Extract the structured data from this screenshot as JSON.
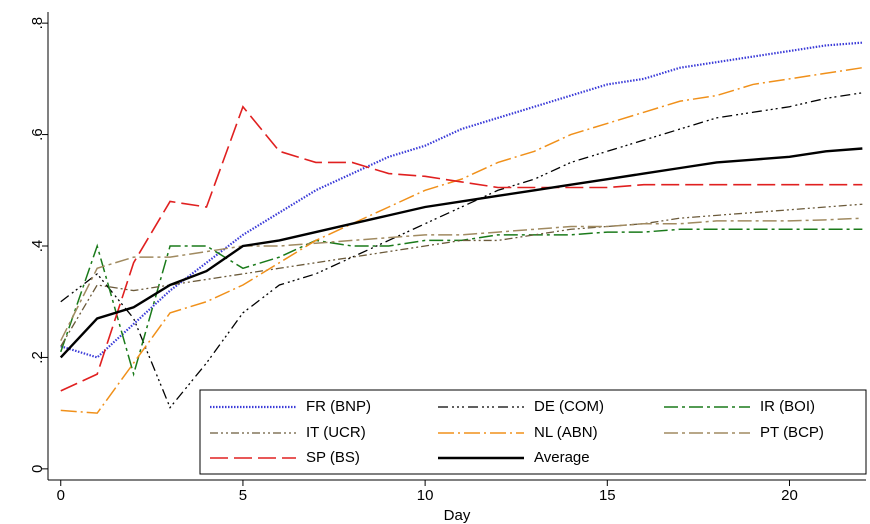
{
  "chart_data": {
    "type": "line",
    "xlabel": "Day",
    "x": [
      0,
      1,
      2,
      3,
      4,
      5,
      6,
      7,
      8,
      9,
      10,
      11,
      12,
      13,
      14,
      15,
      16,
      17,
      18,
      19,
      20,
      21,
      22
    ],
    "series": [
      {
        "name": "FR (BNP)",
        "color": "#3b3bd8",
        "dash": "1.5,1.5",
        "width": 2.2,
        "values": [
          0.22,
          0.2,
          0.26,
          0.32,
          0.37,
          0.42,
          0.46,
          0.5,
          0.53,
          0.56,
          0.58,
          0.61,
          0.63,
          0.65,
          0.67,
          0.69,
          0.7,
          0.72,
          0.73,
          0.74,
          0.75,
          0.76,
          0.765
        ]
      },
      {
        "name": "DE (COM)",
        "color": "#000000",
        "dash": "10,4,2,3,2,3,2,4",
        "width": 1.3,
        "values": [
          0.3,
          0.35,
          0.27,
          0.11,
          0.19,
          0.28,
          0.33,
          0.35,
          0.38,
          0.41,
          0.44,
          0.47,
          0.5,
          0.52,
          0.55,
          0.57,
          0.59,
          0.61,
          0.63,
          0.64,
          0.65,
          0.665,
          0.675
        ]
      },
      {
        "name": "IR (BOI)",
        "color": "#1a7a1a",
        "dash": "14,4,3,4",
        "width": 1.5,
        "values": [
          0.21,
          0.4,
          0.17,
          0.4,
          0.4,
          0.36,
          0.38,
          0.41,
          0.4,
          0.4,
          0.41,
          0.41,
          0.42,
          0.42,
          0.42,
          0.425,
          0.425,
          0.43,
          0.43,
          0.43,
          0.43,
          0.43,
          0.43
        ]
      },
      {
        "name": "IT (UCR)",
        "color": "#6b5a3a",
        "dash": "8,3,2,3,2,3",
        "width": 1.3,
        "values": [
          0.22,
          0.33,
          0.32,
          0.33,
          0.34,
          0.35,
          0.36,
          0.37,
          0.38,
          0.39,
          0.4,
          0.41,
          0.41,
          0.42,
          0.43,
          0.435,
          0.44,
          0.45,
          0.455,
          0.46,
          0.465,
          0.47,
          0.475
        ]
      },
      {
        "name": "NL (ABN)",
        "color": "#f0901a",
        "dash": "16,4,2,4",
        "width": 1.5,
        "values": [
          0.105,
          0.1,
          0.19,
          0.28,
          0.3,
          0.33,
          0.37,
          0.41,
          0.44,
          0.47,
          0.5,
          0.52,
          0.55,
          0.57,
          0.6,
          0.62,
          0.64,
          0.66,
          0.67,
          0.69,
          0.7,
          0.71,
          0.72
        ]
      },
      {
        "name": "PT (BCP)",
        "color": "#a08a60",
        "dash": "14,4,3,4",
        "width": 1.5,
        "values": [
          0.23,
          0.36,
          0.38,
          0.38,
          0.39,
          0.4,
          0.4,
          0.405,
          0.41,
          0.415,
          0.42,
          0.42,
          0.425,
          0.43,
          0.435,
          0.435,
          0.44,
          0.44,
          0.445,
          0.445,
          0.445,
          0.447,
          0.45
        ]
      },
      {
        "name": "SP (BS)",
        "color": "#e02020",
        "dash": "18,6",
        "width": 1.6,
        "values": [
          0.14,
          0.17,
          0.37,
          0.48,
          0.47,
          0.65,
          0.57,
          0.55,
          0.55,
          0.53,
          0.525,
          0.515,
          0.505,
          0.505,
          0.505,
          0.505,
          0.51,
          0.51,
          0.51,
          0.51,
          0.51,
          0.51,
          0.51
        ]
      },
      {
        "name": "Average",
        "color": "#000000",
        "dash": "none",
        "width": 2.4,
        "values": [
          0.2,
          0.27,
          0.29,
          0.33,
          0.355,
          0.4,
          0.41,
          0.425,
          0.44,
          0.455,
          0.47,
          0.48,
          0.49,
          0.5,
          0.51,
          0.52,
          0.53,
          0.54,
          0.55,
          0.555,
          0.56,
          0.57,
          0.575
        ]
      }
    ],
    "xlim": [
      -0.35,
      22.1
    ],
    "ylim": [
      -0.02,
      0.82
    ],
    "xticks": [
      0,
      5,
      10,
      15,
      20
    ],
    "yticks": [
      0,
      {
        "value": 0.2,
        "label": ".2"
      },
      {
        "value": 0.4,
        "label": ".4"
      },
      {
        "value": 0.6,
        "label": ".6"
      },
      {
        "value": 0.8,
        "label": ".8"
      }
    ]
  }
}
